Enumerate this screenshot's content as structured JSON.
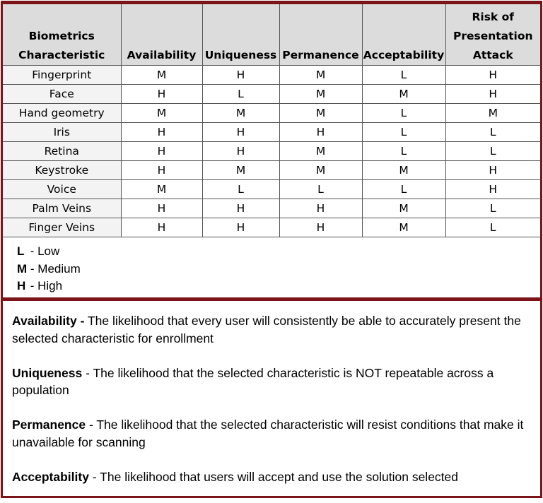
{
  "table": {
    "headers": [
      "Biometrics Characteristic",
      "Availability",
      "Uniqueness",
      "Permanence",
      "Acceptability",
      "Risk of Presentation Attack"
    ],
    "rows": [
      [
        "Fingerprint",
        "M",
        "H",
        "M",
        "L",
        "H"
      ],
      [
        "Face",
        "H",
        "L",
        "M",
        "M",
        "H"
      ],
      [
        "Hand geometry",
        "M",
        "M",
        "M",
        "L",
        "M"
      ],
      [
        "Iris",
        "H",
        "H",
        "H",
        "L",
        "L"
      ],
      [
        "Retina",
        "H",
        "H",
        "M",
        "L",
        "L"
      ],
      [
        "Keystroke",
        "H",
        "M",
        "M",
        "M",
        "H"
      ],
      [
        "Voice",
        "M",
        "L",
        "L",
        "L",
        "H"
      ],
      [
        "Palm Veins",
        "H",
        "H",
        "H",
        "M",
        "L"
      ],
      [
        "Finger Veins",
        "H",
        "H",
        "H",
        "M",
        "L"
      ]
    ]
  },
  "legend": [
    {
      "code": "L",
      "label": " - Low"
    },
    {
      "code": "M",
      "label": " - Medium"
    },
    {
      "code": "H",
      "label": " - High"
    }
  ],
  "definitions": [
    {
      "term": "Availability -",
      "text": " The likelihood that every user will consistently be able to accurately present the selected characteristic for enrollment"
    },
    {
      "term": "Uniqueness",
      "text": " - The likelihood that the selected characteristic is NOT repeatable across a population"
    },
    {
      "term": "Permanence",
      "text": " - The likelihood that the selected characteristic will resist conditions that make it unavailable for scanning"
    },
    {
      "term": "Acceptability",
      "text": " - The likelihood that users will accept and use the solution selected"
    }
  ],
  "colors": {
    "border": "#7a1418",
    "header_bg": "#dcdcdc"
  }
}
